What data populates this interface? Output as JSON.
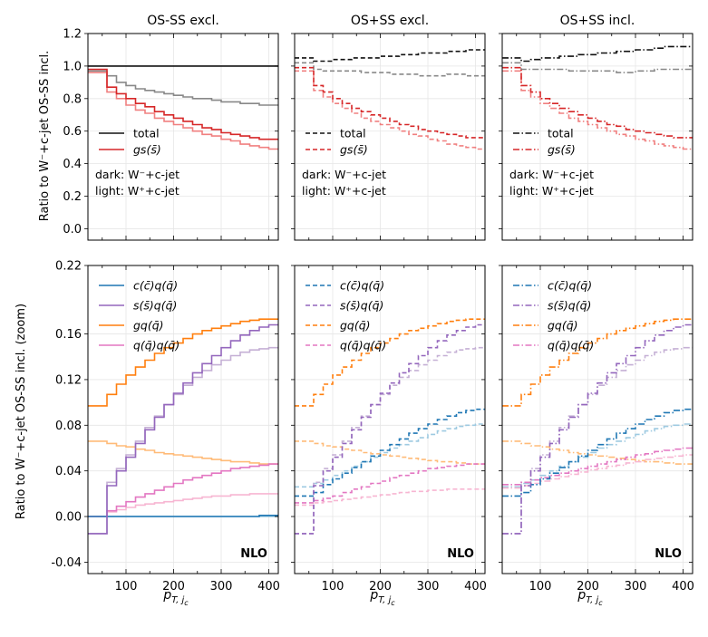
{
  "figure": {
    "ylabel_top": "Ratio to W⁻+c-jet OS-SS incl.",
    "ylabel_bottom": "Ratio to W⁻+c-jet OS-SS incl. (zoom)",
    "xlabel": "p",
    "xlabel_sub": "T, j",
    "xlabel_subsub": "c",
    "nlo_label": "NLO",
    "dark_note": "dark: W⁻+c-jet",
    "light_note": "light: W⁺+c-jet",
    "legend_top": [
      "total",
      "gs(s̄)"
    ],
    "legend_bottom": [
      "c(c̄)q(q̄)",
      "s(s̄)q(q̄)",
      "gq(q̄)",
      "q(q̄)q(q̄)"
    ],
    "colors": {
      "total_dark": "#111111",
      "total_light": "#888888",
      "gs_dark": "#d62728",
      "gs_light": "#f08080",
      "cc_dark": "#1f77b4",
      "cc_light": "#9ecae1",
      "ss_dark": "#9467bd",
      "ss_light": "#c5b0d5",
      "gq_dark": "#ff7f0e",
      "gq_light": "#ffbb78",
      "qq_dark": "#e377c2",
      "qq_light": "#f7b6d2"
    }
  },
  "chart_data": {
    "type": "line",
    "step": true,
    "edges": [
      20,
      40,
      60,
      80,
      100,
      120,
      140,
      160,
      180,
      200,
      220,
      240,
      260,
      280,
      300,
      320,
      340,
      360,
      380,
      400,
      420
    ],
    "xlim": [
      20,
      420
    ],
    "xticks": [
      100,
      200,
      300,
      400
    ],
    "xtick_labels": [
      "100",
      "200",
      "300",
      "400"
    ],
    "top_ylim": [
      -0.07,
      1.2
    ],
    "top_yticks": [
      0.0,
      0.2,
      0.4,
      0.6,
      0.8,
      1.0,
      1.2
    ],
    "top_ytick_labels": [
      "0.0",
      "0.2",
      "0.4",
      "0.6",
      "0.8",
      "1.0",
      "1.2"
    ],
    "bottom_ylim": [
      -0.05,
      0.22
    ],
    "bottom_yticks": [
      -0.04,
      0.0,
      0.04,
      0.08,
      0.12,
      0.16,
      0.22
    ],
    "bottom_ytick_labels": [
      "-0.04",
      "0.00",
      "0.04",
      "0.08",
      "0.12",
      "0.16",
      "0.22"
    ],
    "panels": [
      {
        "title": "OS-SS excl.",
        "linestyle": "solid",
        "top": {
          "total_dark": [
            1.0,
            1.0,
            1.0,
            1.0,
            1.0,
            1.0,
            1.0,
            1.0,
            1.0,
            1.0,
            1.0,
            1.0,
            1.0,
            1.0,
            1.0,
            1.0,
            1.0,
            1.0,
            1.0,
            1.0
          ],
          "total_light": [
            0.97,
            0.97,
            0.94,
            0.9,
            0.88,
            0.86,
            0.85,
            0.84,
            0.83,
            0.82,
            0.81,
            0.8,
            0.8,
            0.79,
            0.78,
            0.78,
            0.77,
            0.77,
            0.76,
            0.76
          ],
          "gs_dark": [
            0.98,
            0.98,
            0.87,
            0.83,
            0.8,
            0.77,
            0.75,
            0.72,
            0.7,
            0.68,
            0.66,
            0.64,
            0.62,
            0.61,
            0.59,
            0.58,
            0.57,
            0.56,
            0.55,
            0.55
          ],
          "gs_light": [
            0.96,
            0.96,
            0.84,
            0.8,
            0.76,
            0.73,
            0.71,
            0.68,
            0.66,
            0.64,
            0.62,
            0.6,
            0.58,
            0.57,
            0.55,
            0.54,
            0.52,
            0.51,
            0.5,
            0.49
          ]
        },
        "bottom": {
          "cc_dark": [
            0.0,
            0.0,
            0.0,
            0.0,
            0.0,
            0.0,
            0.0,
            0.0,
            0.0,
            0.0,
            0.0,
            0.0,
            0.0,
            0.0,
            0.0,
            0.0,
            0.0,
            0.0,
            0.001,
            0.001
          ],
          "cc_light": [
            0.0,
            0.0,
            0.0,
            0.0,
            0.0,
            0.0,
            0.0,
            0.0,
            0.0,
            0.0,
            0.0,
            0.0,
            0.0,
            0.0,
            0.0,
            0.0,
            0.0,
            0.0,
            0.0,
            0.0
          ],
          "ss_dark": [
            -0.015,
            -0.015,
            0.027,
            0.04,
            0.052,
            0.064,
            0.076,
            0.087,
            0.098,
            0.108,
            0.117,
            0.126,
            0.134,
            0.141,
            0.148,
            0.154,
            0.159,
            0.163,
            0.166,
            0.168
          ],
          "ss_light": [
            -0.015,
            -0.015,
            0.03,
            0.042,
            0.054,
            0.066,
            0.078,
            0.088,
            0.098,
            0.107,
            0.115,
            0.122,
            0.128,
            0.133,
            0.137,
            0.141,
            0.144,
            0.146,
            0.147,
            0.148
          ],
          "gq_dark": [
            0.097,
            0.097,
            0.107,
            0.116,
            0.124,
            0.131,
            0.137,
            0.143,
            0.148,
            0.152,
            0.156,
            0.16,
            0.163,
            0.165,
            0.167,
            0.169,
            0.171,
            0.172,
            0.173,
            0.173
          ],
          "gq_light": [
            0.066,
            0.066,
            0.064,
            0.062,
            0.061,
            0.059,
            0.058,
            0.056,
            0.055,
            0.054,
            0.053,
            0.052,
            0.051,
            0.05,
            0.049,
            0.048,
            0.048,
            0.047,
            0.046,
            0.046
          ],
          "qq_dark": [
            0.0,
            0.0,
            0.005,
            0.009,
            0.013,
            0.017,
            0.02,
            0.023,
            0.026,
            0.029,
            0.032,
            0.034,
            0.036,
            0.038,
            0.04,
            0.042,
            0.043,
            0.044,
            0.045,
            0.046
          ],
          "qq_light": [
            0.0,
            0.0,
            0.004,
            0.006,
            0.008,
            0.01,
            0.011,
            0.012,
            0.013,
            0.014,
            0.015,
            0.016,
            0.017,
            0.018,
            0.018,
            0.019,
            0.019,
            0.02,
            0.02,
            0.02
          ]
        }
      },
      {
        "title": "OS+SS excl.",
        "linestyle": "dashed",
        "top": {
          "total_dark": [
            1.05,
            1.05,
            1.03,
            1.03,
            1.04,
            1.04,
            1.05,
            1.05,
            1.05,
            1.06,
            1.06,
            1.07,
            1.07,
            1.08,
            1.08,
            1.08,
            1.09,
            1.09,
            1.1,
            1.1
          ],
          "total_light": [
            1.02,
            1.02,
            0.98,
            0.97,
            0.97,
            0.97,
            0.97,
            0.96,
            0.96,
            0.96,
            0.95,
            0.95,
            0.95,
            0.94,
            0.94,
            0.94,
            0.95,
            0.95,
            0.94,
            0.94
          ],
          "gs_dark": [
            0.99,
            0.99,
            0.88,
            0.84,
            0.8,
            0.77,
            0.74,
            0.72,
            0.7,
            0.68,
            0.66,
            0.64,
            0.63,
            0.61,
            0.6,
            0.59,
            0.58,
            0.57,
            0.56,
            0.56
          ],
          "gs_light": [
            0.97,
            0.97,
            0.85,
            0.81,
            0.77,
            0.74,
            0.71,
            0.68,
            0.66,
            0.64,
            0.62,
            0.6,
            0.58,
            0.57,
            0.55,
            0.54,
            0.52,
            0.51,
            0.5,
            0.49
          ]
        },
        "bottom": {
          "cc_dark": [
            0.018,
            0.018,
            0.021,
            0.028,
            0.033,
            0.038,
            0.043,
            0.048,
            0.053,
            0.058,
            0.063,
            0.068,
            0.073,
            0.077,
            0.081,
            0.085,
            0.088,
            0.091,
            0.093,
            0.094
          ],
          "cc_light": [
            0.026,
            0.026,
            0.029,
            0.032,
            0.036,
            0.04,
            0.044,
            0.048,
            0.052,
            0.056,
            0.06,
            0.063,
            0.066,
            0.069,
            0.072,
            0.075,
            0.077,
            0.079,
            0.08,
            0.081
          ],
          "ss_dark": [
            -0.015,
            -0.015,
            0.027,
            0.04,
            0.052,
            0.064,
            0.076,
            0.087,
            0.098,
            0.108,
            0.117,
            0.126,
            0.134,
            0.141,
            0.148,
            0.154,
            0.159,
            0.163,
            0.166,
            0.168
          ],
          "ss_light": [
            -0.015,
            -0.015,
            0.03,
            0.042,
            0.054,
            0.066,
            0.078,
            0.088,
            0.098,
            0.107,
            0.115,
            0.122,
            0.128,
            0.133,
            0.137,
            0.141,
            0.144,
            0.146,
            0.147,
            0.148
          ],
          "gq_dark": [
            0.097,
            0.097,
            0.107,
            0.116,
            0.124,
            0.131,
            0.137,
            0.143,
            0.148,
            0.152,
            0.156,
            0.16,
            0.163,
            0.165,
            0.167,
            0.169,
            0.171,
            0.172,
            0.173,
            0.173
          ],
          "gq_light": [
            0.066,
            0.066,
            0.064,
            0.062,
            0.061,
            0.059,
            0.058,
            0.056,
            0.055,
            0.054,
            0.053,
            0.052,
            0.051,
            0.05,
            0.049,
            0.048,
            0.048,
            0.047,
            0.046,
            0.046
          ],
          "qq_dark": [
            0.012,
            0.012,
            0.014,
            0.016,
            0.018,
            0.021,
            0.024,
            0.026,
            0.029,
            0.031,
            0.034,
            0.036,
            0.038,
            0.04,
            0.042,
            0.043,
            0.044,
            0.045,
            0.046,
            0.046
          ],
          "qq_light": [
            0.01,
            0.01,
            0.012,
            0.013,
            0.014,
            0.015,
            0.016,
            0.017,
            0.018,
            0.019,
            0.02,
            0.021,
            0.022,
            0.022,
            0.023,
            0.023,
            0.024,
            0.024,
            0.024,
            0.024
          ]
        }
      },
      {
        "title": "OS+SS incl.",
        "linestyle": "dashdot",
        "top": {
          "total_dark": [
            1.05,
            1.05,
            1.03,
            1.04,
            1.05,
            1.05,
            1.06,
            1.06,
            1.07,
            1.07,
            1.08,
            1.08,
            1.09,
            1.09,
            1.1,
            1.1,
            1.11,
            1.12,
            1.12,
            1.12
          ],
          "total_light": [
            1.02,
            1.02,
            0.98,
            0.98,
            0.98,
            0.98,
            0.98,
            0.97,
            0.97,
            0.97,
            0.97,
            0.97,
            0.96,
            0.96,
            0.97,
            0.97,
            0.98,
            0.98,
            0.98,
            0.98
          ],
          "gs_dark": [
            0.99,
            0.99,
            0.88,
            0.84,
            0.8,
            0.77,
            0.74,
            0.72,
            0.7,
            0.68,
            0.66,
            0.64,
            0.63,
            0.61,
            0.6,
            0.59,
            0.58,
            0.57,
            0.56,
            0.56
          ],
          "gs_light": [
            0.97,
            0.97,
            0.85,
            0.81,
            0.77,
            0.74,
            0.71,
            0.68,
            0.66,
            0.64,
            0.62,
            0.6,
            0.58,
            0.57,
            0.55,
            0.54,
            0.52,
            0.51,
            0.5,
            0.49
          ]
        },
        "bottom": {
          "cc_dark": [
            0.018,
            0.018,
            0.021,
            0.028,
            0.033,
            0.038,
            0.043,
            0.048,
            0.053,
            0.058,
            0.063,
            0.068,
            0.073,
            0.077,
            0.081,
            0.085,
            0.088,
            0.091,
            0.093,
            0.094
          ],
          "cc_light": [
            0.026,
            0.026,
            0.029,
            0.032,
            0.036,
            0.04,
            0.044,
            0.048,
            0.052,
            0.056,
            0.06,
            0.063,
            0.066,
            0.069,
            0.072,
            0.075,
            0.077,
            0.079,
            0.08,
            0.081
          ],
          "ss_dark": [
            -0.015,
            -0.015,
            0.027,
            0.04,
            0.052,
            0.064,
            0.076,
            0.087,
            0.098,
            0.108,
            0.117,
            0.126,
            0.134,
            0.141,
            0.148,
            0.154,
            0.159,
            0.163,
            0.166,
            0.168
          ],
          "ss_light": [
            -0.015,
            -0.015,
            0.03,
            0.042,
            0.054,
            0.066,
            0.078,
            0.088,
            0.098,
            0.107,
            0.115,
            0.122,
            0.128,
            0.133,
            0.137,
            0.141,
            0.144,
            0.146,
            0.147,
            0.148
          ],
          "gq_dark": [
            0.097,
            0.097,
            0.107,
            0.116,
            0.124,
            0.131,
            0.137,
            0.143,
            0.148,
            0.152,
            0.156,
            0.16,
            0.163,
            0.165,
            0.167,
            0.169,
            0.171,
            0.172,
            0.173,
            0.173
          ],
          "gq_light": [
            0.066,
            0.066,
            0.064,
            0.062,
            0.061,
            0.059,
            0.058,
            0.056,
            0.055,
            0.054,
            0.053,
            0.052,
            0.051,
            0.05,
            0.049,
            0.048,
            0.048,
            0.047,
            0.046,
            0.046
          ],
          "qq_dark": [
            0.028,
            0.028,
            0.03,
            0.032,
            0.034,
            0.036,
            0.038,
            0.04,
            0.042,
            0.044,
            0.046,
            0.048,
            0.05,
            0.052,
            0.054,
            0.055,
            0.057,
            0.058,
            0.059,
            0.06
          ],
          "qq_light": [
            0.025,
            0.025,
            0.027,
            0.029,
            0.031,
            0.033,
            0.035,
            0.037,
            0.039,
            0.041,
            0.042,
            0.044,
            0.045,
            0.047,
            0.048,
            0.05,
            0.051,
            0.052,
            0.053,
            0.054
          ]
        }
      }
    ]
  }
}
